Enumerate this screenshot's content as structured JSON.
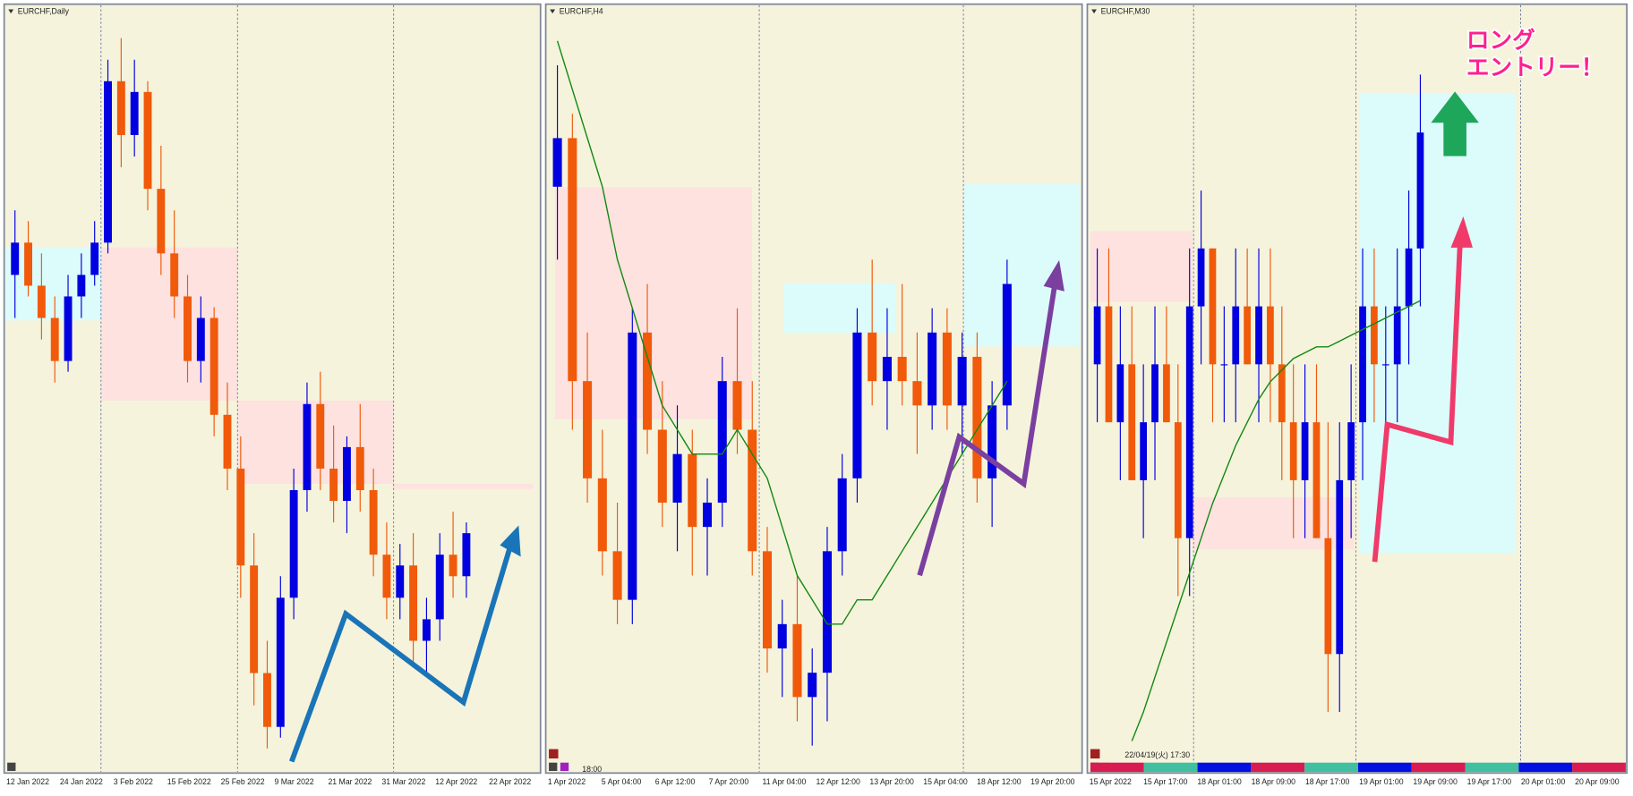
{
  "chart_data": [
    {
      "type": "candlestick",
      "title": "EURCHF,Daily",
      "ylim": [
        0.994,
        1.064
      ],
      "up_color": "#0000e0",
      "down_color": "#f05a0a",
      "xtick_labels": [
        "12 Jan 2022",
        "24 Jan 2022",
        "3 Feb 2022",
        "15 Feb 2022",
        "25 Feb 2022",
        "9 Mar 2022",
        "21 Mar 2022",
        "31 Mar 2022",
        "12 Apr 2022",
        "22 Apr 2022"
      ],
      "candles": [
        [
          1.04,
          1.046,
          1.036,
          1.043
        ],
        [
          1.043,
          1.045,
          1.038,
          1.039
        ],
        [
          1.039,
          1.042,
          1.034,
          1.036
        ],
        [
          1.036,
          1.038,
          1.03,
          1.032
        ],
        [
          1.032,
          1.04,
          1.031,
          1.038
        ],
        [
          1.038,
          1.042,
          1.036,
          1.04
        ],
        [
          1.04,
          1.045,
          1.039,
          1.043
        ],
        [
          1.043,
          1.06,
          1.042,
          1.058
        ],
        [
          1.058,
          1.062,
          1.05,
          1.053
        ],
        [
          1.053,
          1.06,
          1.051,
          1.057
        ],
        [
          1.057,
          1.058,
          1.046,
          1.048
        ],
        [
          1.048,
          1.052,
          1.04,
          1.042
        ],
        [
          1.042,
          1.046,
          1.036,
          1.038
        ],
        [
          1.038,
          1.04,
          1.03,
          1.032
        ],
        [
          1.032,
          1.038,
          1.03,
          1.036
        ],
        [
          1.036,
          1.037,
          1.025,
          1.027
        ],
        [
          1.027,
          1.03,
          1.02,
          1.022
        ],
        [
          1.022,
          1.025,
          1.01,
          1.013
        ],
        [
          1.013,
          1.016,
          1.0,
          1.003
        ],
        [
          1.003,
          1.006,
          0.996,
          0.998
        ],
        [
          0.998,
          1.012,
          0.997,
          1.01
        ],
        [
          1.01,
          1.022,
          1.008,
          1.02
        ],
        [
          1.02,
          1.03,
          1.018,
          1.028
        ],
        [
          1.028,
          1.031,
          1.02,
          1.022
        ],
        [
          1.022,
          1.026,
          1.017,
          1.019
        ],
        [
          1.019,
          1.025,
          1.016,
          1.024
        ],
        [
          1.024,
          1.028,
          1.018,
          1.02
        ],
        [
          1.02,
          1.022,
          1.012,
          1.014
        ],
        [
          1.014,
          1.017,
          1.008,
          1.01
        ],
        [
          1.01,
          1.015,
          1.008,
          1.013
        ],
        [
          1.013,
          1.016,
          1.004,
          1.006
        ],
        [
          1.006,
          1.01,
          1.003,
          1.008
        ],
        [
          1.008,
          1.016,
          1.006,
          1.014
        ],
        [
          1.014,
          1.018,
          1.01,
          1.012
        ],
        [
          1.012,
          1.017,
          1.01,
          1.016
        ]
      ]
    },
    {
      "type": "candlestick",
      "title": "EURCHF,H4",
      "ylim": [
        1.0,
        1.031
      ],
      "up_color": "#0000e0",
      "down_color": "#f05a0a",
      "ma_color": "#118811",
      "time_label": "18:00",
      "xtick_labels": [
        "1 Apr 2022",
        "5 Apr 04:00",
        "6 Apr 12:00",
        "7 Apr 20:00",
        "11 Apr 04:00",
        "12 Apr 12:00",
        "13 Apr 20:00",
        "15 Apr 04:00",
        "18 Apr 12:00",
        "19 Apr 20:00"
      ],
      "candles": [
        [
          1.024,
          1.029,
          1.021,
          1.026
        ],
        [
          1.026,
          1.027,
          1.014,
          1.016
        ],
        [
          1.016,
          1.018,
          1.011,
          1.012
        ],
        [
          1.012,
          1.014,
          1.008,
          1.009
        ],
        [
          1.009,
          1.011,
          1.006,
          1.007
        ],
        [
          1.007,
          1.019,
          1.006,
          1.018
        ],
        [
          1.018,
          1.02,
          1.013,
          1.014
        ],
        [
          1.014,
          1.016,
          1.01,
          1.011
        ],
        [
          1.011,
          1.015,
          1.009,
          1.013
        ],
        [
          1.013,
          1.014,
          1.008,
          1.01
        ],
        [
          1.01,
          1.012,
          1.008,
          1.011
        ],
        [
          1.011,
          1.017,
          1.01,
          1.016
        ],
        [
          1.016,
          1.019,
          1.013,
          1.014
        ],
        [
          1.014,
          1.016,
          1.008,
          1.009
        ],
        [
          1.009,
          1.01,
          1.004,
          1.005
        ],
        [
          1.005,
          1.007,
          1.003,
          1.006
        ],
        [
          1.006,
          1.008,
          1.002,
          1.003
        ],
        [
          1.003,
          1.005,
          1.001,
          1.004
        ],
        [
          1.004,
          1.01,
          1.002,
          1.009
        ],
        [
          1.009,
          1.013,
          1.008,
          1.012
        ],
        [
          1.012,
          1.019,
          1.011,
          1.018
        ],
        [
          1.018,
          1.021,
          1.015,
          1.016
        ],
        [
          1.016,
          1.019,
          1.014,
          1.017
        ],
        [
          1.017,
          1.02,
          1.015,
          1.016
        ],
        [
          1.016,
          1.018,
          1.013,
          1.015
        ],
        [
          1.015,
          1.019,
          1.014,
          1.018
        ],
        [
          1.018,
          1.019,
          1.014,
          1.015
        ],
        [
          1.015,
          1.018,
          1.013,
          1.017
        ],
        [
          1.017,
          1.018,
          1.011,
          1.012
        ],
        [
          1.012,
          1.016,
          1.01,
          1.015
        ],
        [
          1.015,
          1.021,
          1.014,
          1.02
        ]
      ],
      "ma": [
        1.03,
        1.028,
        1.026,
        1.024,
        1.021,
        1.019,
        1.017,
        1.015,
        1.014,
        1.013,
        1.013,
        1.013,
        1.014,
        1.013,
        1.012,
        1.01,
        1.008,
        1.007,
        1.006,
        1.006,
        1.007,
        1.007,
        1.008,
        1.009,
        1.01,
        1.011,
        1.012,
        1.013,
        1.014,
        1.015,
        1.016
      ]
    },
    {
      "type": "candlestick",
      "title": "EURCHF,M30",
      "ylim": [
        1.009,
        1.022
      ],
      "up_color": "#0000e0",
      "down_color": "#f05a0a",
      "ma_color": "#118811",
      "time_label": "22/04/19(火) 17:30",
      "xtick_labels": [
        "15 Apr 2022",
        "15 Apr 17:00",
        "18 Apr 01:00",
        "18 Apr 09:00",
        "18 Apr 17:00",
        "19 Apr 01:00",
        "19 Apr 09:00",
        "19 Apr 17:00",
        "20 Apr 01:00",
        "20 Apr 09:00"
      ],
      "candles": [
        [
          1.016,
          1.018,
          1.015,
          1.017
        ],
        [
          1.017,
          1.018,
          1.015,
          1.015
        ],
        [
          1.015,
          1.017,
          1.014,
          1.016
        ],
        [
          1.016,
          1.017,
          1.014,
          1.014
        ],
        [
          1.014,
          1.016,
          1.013,
          1.015
        ],
        [
          1.015,
          1.017,
          1.014,
          1.016
        ],
        [
          1.016,
          1.017,
          1.015,
          1.015
        ],
        [
          1.015,
          1.016,
          1.012,
          1.013
        ],
        [
          1.013,
          1.018,
          1.012,
          1.017
        ],
        [
          1.017,
          1.019,
          1.016,
          1.018
        ],
        [
          1.018,
          1.018,
          1.015,
          1.016
        ],
        [
          1.016,
          1.017,
          1.015,
          1.016
        ],
        [
          1.016,
          1.018,
          1.015,
          1.017
        ],
        [
          1.017,
          1.018,
          1.016,
          1.016
        ],
        [
          1.016,
          1.018,
          1.015,
          1.017
        ],
        [
          1.017,
          1.018,
          1.015,
          1.016
        ],
        [
          1.016,
          1.017,
          1.014,
          1.015
        ],
        [
          1.015,
          1.016,
          1.013,
          1.014
        ],
        [
          1.014,
          1.016,
          1.013,
          1.015
        ],
        [
          1.015,
          1.016,
          1.013,
          1.013
        ],
        [
          1.013,
          1.015,
          1.01,
          1.011
        ],
        [
          1.011,
          1.015,
          1.01,
          1.014
        ],
        [
          1.014,
          1.016,
          1.013,
          1.015
        ],
        [
          1.015,
          1.018,
          1.014,
          1.017
        ],
        [
          1.017,
          1.018,
          1.015,
          1.016
        ],
        [
          1.016,
          1.017,
          1.015,
          1.016
        ],
        [
          1.016,
          1.018,
          1.015,
          1.017
        ],
        [
          1.017,
          1.019,
          1.016,
          1.018
        ],
        [
          1.018,
          1.021,
          1.017,
          1.02
        ]
      ],
      "ma": [
        null,
        null,
        null,
        1.0095,
        1.01,
        1.0106,
        1.0112,
        1.0118,
        1.0124,
        1.013,
        1.0136,
        1.0141,
        1.0146,
        1.015,
        1.0154,
        1.0157,
        1.0159,
        1.0161,
        1.0162,
        1.0163,
        1.0163,
        1.0164,
        1.0165,
        1.0166,
        1.0167,
        1.0168,
        1.0169,
        1.017,
        1.0171
      ]
    }
  ],
  "annotation": {
    "lines": [
      "ロング",
      "エントリー！"
    ]
  }
}
